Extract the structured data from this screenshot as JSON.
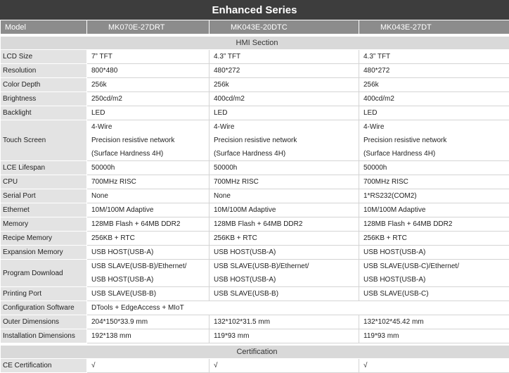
{
  "title": "Enhanced Series",
  "header": {
    "label": "Model",
    "models": [
      "MK070E-27DRT",
      "MK043E-20DTC",
      "MK043E-27DT"
    ]
  },
  "sections": [
    {
      "title": "HMI Section",
      "rows": [
        {
          "label": "LCD Size",
          "values": [
            [
              "7” TFT"
            ],
            [
              "4.3” TFT"
            ],
            [
              "4.3” TFT"
            ]
          ]
        },
        {
          "label": "Resolution",
          "values": [
            [
              "800*480"
            ],
            [
              "480*272"
            ],
            [
              "480*272"
            ]
          ]
        },
        {
          "label": "Color Depth",
          "values": [
            [
              "256k"
            ],
            [
              "256k"
            ],
            [
              "256k"
            ]
          ]
        },
        {
          "label": "Brightness",
          "values": [
            [
              "250cd/m2"
            ],
            [
              "400cd/m2"
            ],
            [
              "400cd/m2"
            ]
          ]
        },
        {
          "label": "Backlight",
          "values": [
            [
              "LED"
            ],
            [
              "LED"
            ],
            [
              "LED"
            ]
          ]
        },
        {
          "label": "Touch Screen",
          "values": [
            [
              "4-Wire",
              "Precision resistive network",
              " (Surface Hardness 4H)"
            ],
            [
              "4-Wire",
              "Precision resistive network",
              " (Surface Hardness 4H)"
            ],
            [
              "4-Wire",
              "Precision resistive network",
              " (Surface Hardness 4H)"
            ]
          ]
        },
        {
          "label": "LCE Lifespan",
          "values": [
            [
              "50000h"
            ],
            [
              "50000h"
            ],
            [
              "50000h"
            ]
          ]
        },
        {
          "label": "CPU",
          "values": [
            [
              "700MHz RISC"
            ],
            [
              "700MHz RISC"
            ],
            [
              "700MHz RISC"
            ]
          ]
        },
        {
          "label": "Serial Port",
          "values": [
            [
              "None"
            ],
            [
              "None"
            ],
            [
              "1*RS232(COM2)"
            ]
          ]
        },
        {
          "label": "Ethernet",
          "values": [
            [
              "10M/100M Adaptive"
            ],
            [
              "10M/100M Adaptive"
            ],
            [
              "10M/100M Adaptive"
            ]
          ]
        },
        {
          "label": "Memory",
          "values": [
            [
              "128MB Flash + 64MB DDR2"
            ],
            [
              "128MB Flash + 64MB DDR2"
            ],
            [
              "128MB Flash + 64MB DDR2"
            ]
          ]
        },
        {
          "label": "Recipe Memory",
          "values": [
            [
              "256KB + RTC"
            ],
            [
              "256KB + RTC"
            ],
            [
              "256KB + RTC"
            ]
          ]
        },
        {
          "label": "Expansion Memory",
          "values": [
            [
              "USB HOST(USB-A)"
            ],
            [
              "USB HOST(USB-A)"
            ],
            [
              "USB HOST(USB-A)"
            ]
          ]
        },
        {
          "label": "Program Download",
          "values": [
            [
              "USB SLAVE(USB-B)/Ethernet/",
              "USB HOST(USB-A)"
            ],
            [
              "USB SLAVE(USB-B)/Ethernet/",
              "USB HOST(USB-A)"
            ],
            [
              "USB SLAVE(USB-C)/Ethernet/",
              "USB HOST(USB-A)"
            ]
          ]
        },
        {
          "label": "Printing Port",
          "values": [
            [
              "USB SLAVE(USB-B)"
            ],
            [
              "USB SLAVE(USB-B)"
            ],
            [
              "USB SLAVE(USB-C)"
            ]
          ]
        },
        {
          "label": "Configuration Software",
          "values": [
            [
              "DTools + EdgeAccess + MIoT"
            ]
          ]
        },
        {
          "label": "Outer Dimensions",
          "values": [
            [
              "204*150*33.9 mm"
            ],
            [
              "132*102*31.5 mm"
            ],
            [
              "132*102*45.42 mm"
            ]
          ]
        },
        {
          "label": "Installation Dimensions",
          "values": [
            [
              "192*138 mm"
            ],
            [
              "119*93 mm"
            ],
            [
              "119*93 mm"
            ]
          ]
        }
      ]
    },
    {
      "title": "Certification",
      "rows": [
        {
          "label": "CE Certification",
          "values": [
            [
              "√"
            ],
            [
              "√"
            ],
            [
              "√"
            ]
          ]
        }
      ]
    }
  ]
}
